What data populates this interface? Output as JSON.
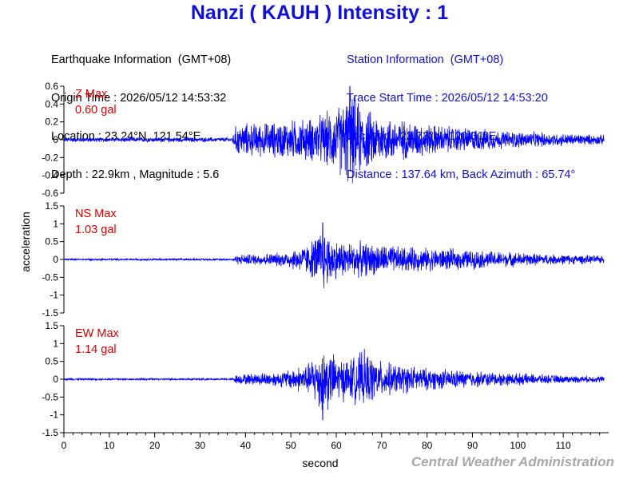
{
  "header": {
    "title": "Nanzi ( KAUH ) Intensity : 1",
    "earthquake": {
      "heading": "Earthquake Information  (GMT+08)",
      "origin_time": "Origin Time : 2026/05/12 14:53:32",
      "location": "Location : 23.24°N, 121.54°E",
      "depth_magnitude": "Depth : 22.9km , Magnitude : 5.6"
    },
    "station": {
      "heading": "Station Information  (GMT+08)",
      "trace_start": "Trace Start Time : 2026/05/12 14:53:20",
      "location": "Location : 22.73°N, 120.31°E",
      "distance_azimuth": "Distance : 137.64 km, Back Azimuth : 65.74°"
    }
  },
  "credit": "Central Weather Administration",
  "colors": {
    "trace": "#0000ff",
    "title": "#1010d8",
    "max_label": "#e00000",
    "credit": "#a8a8a8"
  },
  "chart_data": {
    "type": "line",
    "xlabel": "second",
    "ylabel": "acceleration",
    "xlim": [
      0,
      120
    ],
    "x_ticks": [
      0,
      10,
      20,
      30,
      40,
      50,
      60,
      70,
      80,
      90,
      100,
      110
    ],
    "grid": false,
    "series": [
      {
        "name": "Z",
        "max_label": "Z Max",
        "max_value": "0.60 gal",
        "ylim": [
          -0.6,
          0.6
        ],
        "y_ticks": [
          -0.6,
          -0.4,
          -0.2,
          0,
          0.2,
          0.4,
          0.6
        ],
        "envelope": {
          "t": [
            0,
            37,
            38,
            45,
            55,
            60,
            63,
            66,
            70,
            80,
            95,
            110,
            119
          ],
          "amp": [
            0.03,
            0.03,
            0.2,
            0.22,
            0.28,
            0.4,
            0.6,
            0.4,
            0.3,
            0.2,
            0.12,
            0.08,
            0.06
          ]
        }
      },
      {
        "name": "NS",
        "max_label": "NS Max",
        "max_value": "1.03 gal",
        "ylim": [
          -1.5,
          1.5
        ],
        "y_ticks": [
          -1.5,
          -1,
          -0.5,
          0,
          0.5,
          1,
          1.5
        ],
        "envelope": {
          "t": [
            0,
            37,
            38,
            48,
            54,
            57,
            60,
            65,
            75,
            90,
            105,
            119
          ],
          "amp": [
            0.03,
            0.03,
            0.15,
            0.22,
            0.5,
            1.03,
            0.6,
            0.55,
            0.4,
            0.3,
            0.18,
            0.12
          ]
        }
      },
      {
        "name": "EW",
        "max_label": "EW Max",
        "max_value": "1.14 gal",
        "ylim": [
          -1.5,
          1.5
        ],
        "y_ticks": [
          -1.5,
          -1,
          -0.5,
          0,
          0.5,
          1,
          1.5
        ],
        "envelope": {
          "t": [
            0,
            37,
            38,
            48,
            54,
            57,
            60,
            63,
            66,
            70,
            80,
            95,
            110,
            119
          ],
          "amp": [
            0.03,
            0.03,
            0.15,
            0.25,
            0.5,
            1.14,
            0.7,
            0.65,
            0.9,
            0.55,
            0.35,
            0.22,
            0.12,
            0.1
          ]
        }
      }
    ]
  }
}
